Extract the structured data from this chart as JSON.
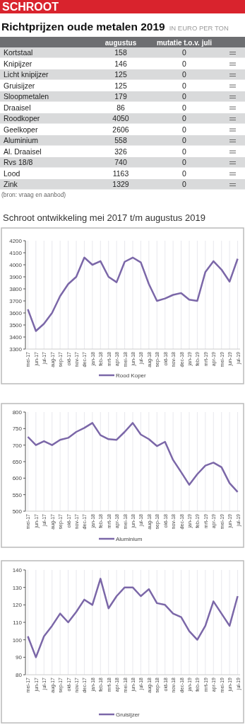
{
  "chart_data": [
    {
      "type": "other",
      "title": "Richtprijzen oude metalen 2019",
      "subtitle": "IN EURO PER TON",
      "categories": [
        "Kortstaal",
        "Knipijzer",
        "Licht knipijzer",
        "Gruisijzer",
        "Sloopmetalen",
        "Draaisel",
        "Roodkoper",
        "Geelkoper",
        "Aluminium",
        "Al. Draaisel",
        "Rvs 18/8",
        "Lood",
        "Zink"
      ],
      "series": [
        {
          "name": "augustus",
          "values": [
            158,
            146,
            125,
            125,
            179,
            86,
            4050,
            2606,
            558,
            326,
            740,
            1163,
            1329
          ]
        },
        {
          "name": "mutatie t.o.v. juli",
          "values": [
            0,
            0,
            0,
            0,
            0,
            0,
            0,
            0,
            0,
            0,
            0,
            0,
            0
          ]
        }
      ],
      "annotations": [
        "SCHROOT",
        "(bron: vraag en aanbod)"
      ],
      "data_labels": true
    },
    {
      "type": "line",
      "title": "Schroot ontwikkeling mei 2017 t/m augustus 2019",
      "categories": [
        "mei-17",
        "jun-17",
        "jul-17",
        "aug-17",
        "sep-17",
        "okt-17",
        "nov-17",
        "dec-17",
        "jan-18",
        "feb-18",
        "mrt-18",
        "apr-18",
        "mei-18",
        "jun-18",
        "jul-18",
        "aug-18",
        "sep-18",
        "okt-18",
        "nov-18",
        "dec-18",
        "jan-19",
        "feb-19",
        "mrt-19",
        "apr-19",
        "mei-19",
        "jun-19",
        "jul-19"
      ],
      "series": [
        {
          "name": "Rood Koper",
          "color": "#7b67a8",
          "values": [
            3630,
            3450,
            3510,
            3600,
            3740,
            3840,
            3900,
            4060,
            4000,
            4030,
            3900,
            3855,
            4025,
            4060,
            4020,
            3840,
            3700,
            3720,
            3750,
            3765,
            3710,
            3700,
            3940,
            4030,
            3960,
            3860,
            4050
          ]
        }
      ],
      "ylim": [
        3300,
        4200
      ],
      "yticks": [
        3300,
        3400,
        3500,
        3600,
        3700,
        3800,
        3900,
        4000,
        4100,
        4200
      ],
      "grid": "x",
      "legend": "bottom"
    },
    {
      "type": "line",
      "categories": [
        "mei-17",
        "jun-17",
        "jul-17",
        "aug-17",
        "sep-17",
        "okt-17",
        "nov-17",
        "dec-17",
        "jan-18",
        "feb-18",
        "mrt-18",
        "apr-18",
        "mei-18",
        "jun-18",
        "jul-18",
        "aug-18",
        "sep-18",
        "okt-18",
        "nov-18",
        "dec-18",
        "jan-19",
        "feb-19",
        "mrt-19",
        "apr-19",
        "mei-19",
        "jun-19",
        "jul-19"
      ],
      "series": [
        {
          "name": "Aluminium",
          "color": "#7b67a8",
          "values": [
            725,
            700,
            712,
            700,
            716,
            722,
            740,
            752,
            767,
            730,
            718,
            716,
            740,
            767,
            732,
            718,
            697,
            710,
            655,
            618,
            580,
            612,
            638,
            647,
            633,
            585,
            558
          ]
        }
      ],
      "ylim": [
        500,
        800
      ],
      "yticks": [
        500,
        550,
        600,
        650,
        700,
        750,
        800
      ],
      "grid": "x",
      "legend": "bottom"
    },
    {
      "type": "line",
      "categories": [
        "mei-17",
        "jun-17",
        "jul-17",
        "aug-17",
        "sep-17",
        "okt-17",
        "nov-17",
        "dec-17",
        "jan-18",
        "feb-18",
        "mrt-18",
        "apr-18",
        "mei-18",
        "jun-18",
        "jul-18",
        "aug-18",
        "sep-18",
        "okt-18",
        "nov-18",
        "dec-18",
        "jan-19",
        "feb-19",
        "mrt-19",
        "apr-19",
        "mei-19",
        "jun-19",
        "jul-19"
      ],
      "series": [
        {
          "name": "Gruisijzer",
          "color": "#7b67a8",
          "values": [
            102,
            90,
            102,
            108,
            115,
            110,
            116,
            123,
            120,
            135,
            118,
            125,
            130,
            130,
            125,
            129,
            121,
            120,
            115,
            113,
            105,
            100,
            108,
            122,
            115,
            108,
            125
          ]
        }
      ],
      "ylim": [
        80,
        140
      ],
      "yticks": [
        80,
        90,
        100,
        110,
        120,
        130,
        140
      ],
      "grid": "x",
      "legend": "bottom"
    }
  ]
}
